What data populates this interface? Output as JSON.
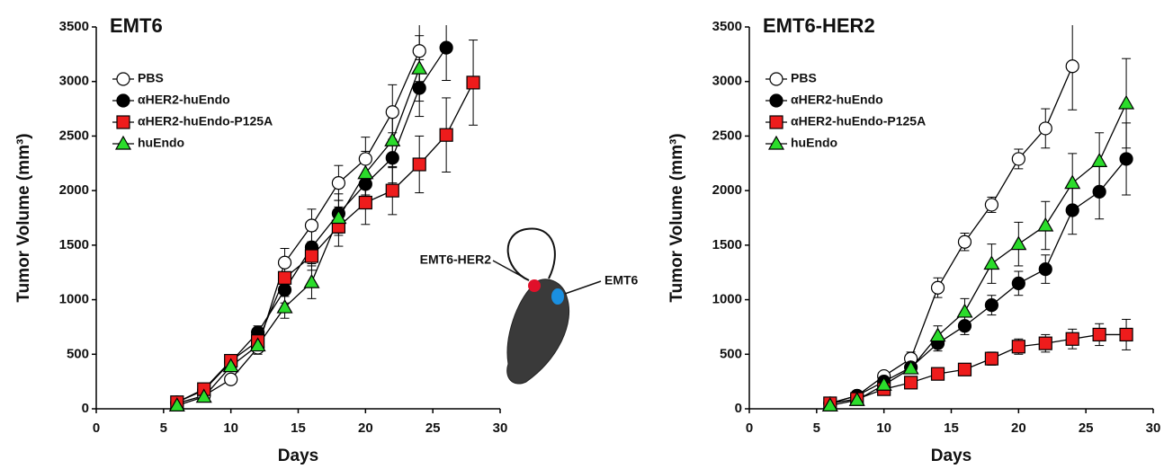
{
  "chart_data": [
    {
      "type": "line",
      "title": "EMT6",
      "title_color": "#1b9be0",
      "x_label": "Days",
      "y_label": "Tumor Volume (mm³)",
      "xlim": [
        0,
        30
      ],
      "xticks": [
        0,
        5,
        10,
        15,
        20,
        25,
        30
      ],
      "ylim": [
        0,
        3500
      ],
      "yticks": [
        0,
        500,
        1000,
        1500,
        2000,
        2500,
        3000,
        3500
      ],
      "x": [
        6,
        8,
        10,
        12,
        14,
        16,
        18,
        20,
        22,
        24,
        26,
        28
      ],
      "series": [
        {
          "name": "PBS",
          "color": "#ffffff",
          "marker": "circle",
          "values": [
            50,
            120,
            270,
            560,
            1340,
            1680,
            2070,
            2290,
            2720,
            3280,
            null,
            null
          ],
          "errors": [
            20,
            30,
            40,
            60,
            130,
            150,
            160,
            200,
            250,
            280,
            null,
            null
          ]
        },
        {
          "name": "αHER2-huEndo",
          "color": "#000000",
          "marker": "circle",
          "values": [
            60,
            170,
            430,
            700,
            1090,
            1480,
            1790,
            2060,
            2300,
            2940,
            3310,
            null
          ],
          "errors": [
            20,
            30,
            40,
            60,
            120,
            150,
            180,
            200,
            230,
            260,
            300,
            null
          ]
        },
        {
          "name": "αHER2-huEndo-P125A",
          "color": "#ee1c1c",
          "marker": "square",
          "values": [
            60,
            180,
            440,
            620,
            1200,
            1400,
            1670,
            1890,
            2000,
            2240,
            2510,
            2990
          ],
          "errors": [
            20,
            30,
            40,
            60,
            120,
            130,
            180,
            200,
            220,
            260,
            340,
            390
          ]
        },
        {
          "name": "huEndo",
          "color": "#2bdc2b",
          "marker": "triangle",
          "values": [
            30,
            110,
            390,
            580,
            930,
            1160,
            1750,
            2160,
            2460,
            3120,
            null,
            null
          ],
          "errors": [
            20,
            30,
            40,
            60,
            100,
            150,
            160,
            200,
            250,
            300,
            null,
            null
          ]
        }
      ],
      "annotations": [
        {
          "text": "EMT6-HER2",
          "color": "#e0102a"
        },
        {
          "text": "EMT6",
          "color": "#1a8fe0"
        }
      ]
    },
    {
      "type": "line",
      "title": "EMT6-HER2",
      "title_color": "#e0102a",
      "x_label": "Days",
      "y_label": "Tumor Volume (mm³)",
      "xlim": [
        0,
        30
      ],
      "xticks": [
        0,
        5,
        10,
        15,
        20,
        25,
        30
      ],
      "ylim": [
        0,
        3500
      ],
      "yticks": [
        0,
        500,
        1000,
        1500,
        2000,
        2500,
        3000,
        3500
      ],
      "x": [
        6,
        8,
        10,
        12,
        14,
        16,
        18,
        20,
        22,
        24,
        26,
        28
      ],
      "series": [
        {
          "name": "PBS",
          "color": "#ffffff",
          "marker": "circle",
          "values": [
            50,
            120,
            300,
            460,
            1110,
            1530,
            1870,
            2290,
            2570,
            3140,
            null,
            null
          ],
          "errors": [
            20,
            30,
            40,
            60,
            90,
            80,
            70,
            90,
            180,
            400,
            null,
            null
          ]
        },
        {
          "name": "αHER2-huEndo",
          "color": "#000000",
          "marker": "circle",
          "values": [
            50,
            120,
            250,
            380,
            600,
            760,
            950,
            1150,
            1280,
            1820,
            1990,
            2290
          ],
          "errors": [
            20,
            30,
            40,
            50,
            70,
            80,
            90,
            110,
            130,
            220,
            250,
            330
          ]
        },
        {
          "name": "αHER2-huEndo-P125A",
          "color": "#ee1c1c",
          "marker": "square",
          "values": [
            50,
            90,
            180,
            240,
            320,
            360,
            460,
            570,
            600,
            640,
            680,
            680
          ],
          "errors": [
            20,
            20,
            30,
            40,
            40,
            50,
            60,
            70,
            80,
            90,
            100,
            140
          ]
        },
        {
          "name": "huEndo",
          "color": "#2bdc2b",
          "marker": "triangle",
          "values": [
            30,
            80,
            220,
            370,
            670,
            890,
            1330,
            1510,
            1680,
            2070,
            2270,
            2800
          ],
          "errors": [
            20,
            20,
            30,
            40,
            90,
            120,
            180,
            200,
            220,
            270,
            260,
            410
          ]
        }
      ]
    }
  ]
}
